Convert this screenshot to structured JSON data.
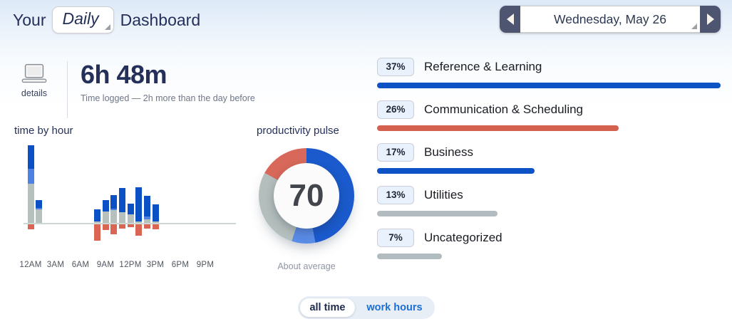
{
  "header": {
    "title_prefix": "Your",
    "period_selector": "Daily",
    "title_suffix": "Dashboard",
    "date_nav": {
      "date": "Wednesday, May 26"
    }
  },
  "summary": {
    "details_label": "details",
    "time_logged": "6h 48m",
    "subtitle": "Time logged — 2h more than the day before"
  },
  "toggle": {
    "options": [
      {
        "label": "all time",
        "selected": true
      },
      {
        "label": "work hours",
        "selected": false
      }
    ]
  },
  "chart_data": [
    {
      "type": "bar",
      "title": "time by hour",
      "stacked": true,
      "note": "stacked hourly bars; productive time above axis, distracting time below; no y-axis labels shown, values are relative units (~minutes)",
      "x_tick_labels": [
        "12AM",
        "3AM",
        "6AM",
        "9AM",
        "12PM",
        "3PM",
        "6PM",
        "9PM"
      ],
      "series_colors": {
        "dark_blue": "#0b51c5",
        "light_blue": "#4d82e3",
        "gray": "#b6c1bd",
        "red": "#d96552"
      },
      "hours": [
        {
          "hour": "12AM",
          "hour_index": 0,
          "gray": 55,
          "light_blue": 21,
          "dark_blue": 33,
          "red_below": 7
        },
        {
          "hour": "1AM",
          "hour_index": 1,
          "gray": 19,
          "light_blue": 2,
          "dark_blue": 11,
          "red_below": 0
        },
        {
          "hour": "8AM",
          "hour_index": 8,
          "gray": 2,
          "light_blue": 0,
          "dark_blue": 17,
          "red_below": 23
        },
        {
          "hour": "9AM",
          "hour_index": 9,
          "gray": 16,
          "light_blue": 0,
          "dark_blue": 16,
          "red_below": 8
        },
        {
          "hour": "10AM",
          "hour_index": 10,
          "gray": 18,
          "light_blue": 2,
          "dark_blue": 19,
          "red_below": 14
        },
        {
          "hour": "11AM",
          "hour_index": 11,
          "gray": 15,
          "light_blue": 0,
          "dark_blue": 34,
          "red_below": 6
        },
        {
          "hour": "12PM",
          "hour_index": 12,
          "gray": 12,
          "light_blue": 0,
          "dark_blue": 15,
          "red_below": 4
        },
        {
          "hour": "1PM",
          "hour_index": 13,
          "gray": 2,
          "light_blue": 0,
          "dark_blue": 48,
          "red_below": 16
        },
        {
          "hour": "2PM",
          "hour_index": 14,
          "gray": 5,
          "light_blue": 4,
          "dark_blue": 29,
          "red_below": 6
        },
        {
          "hour": "3PM",
          "hour_index": 15,
          "gray": 2,
          "light_blue": 0,
          "dark_blue": 24,
          "red_below": 7
        }
      ]
    },
    {
      "type": "pie",
      "title": "productivity pulse",
      "score": 70,
      "caption": "About average",
      "note": "donut gauge, segments clockwise from 12 o'clock",
      "segments": [
        {
          "name": "very productive",
          "color": "#1a5acc",
          "percent": 47
        },
        {
          "name": "productive",
          "color": "#5a8be5",
          "percent": 8
        },
        {
          "name": "neutral",
          "color": "#b4bfbd",
          "percent": 28
        },
        {
          "name": "distracting",
          "color": "#d8695a",
          "percent": 17
        }
      ]
    },
    {
      "type": "bar",
      "title": "top categories",
      "note": "horizontal bars, widths proportional to percent of max (37)",
      "max_value": 37,
      "categories": [
        "Reference & Learning",
        "Communication & Scheduling",
        "Business",
        "Utilities",
        "Uncategorized"
      ],
      "values": [
        37,
        26,
        17,
        13,
        7
      ],
      "value_labels": [
        "37%",
        "26%",
        "17%",
        "13%",
        "7%"
      ],
      "bar_colors": [
        "#0e53c5",
        "#d4604e",
        "#0e53c5",
        "#b2bcc0",
        "#b2bcc0"
      ]
    }
  ]
}
